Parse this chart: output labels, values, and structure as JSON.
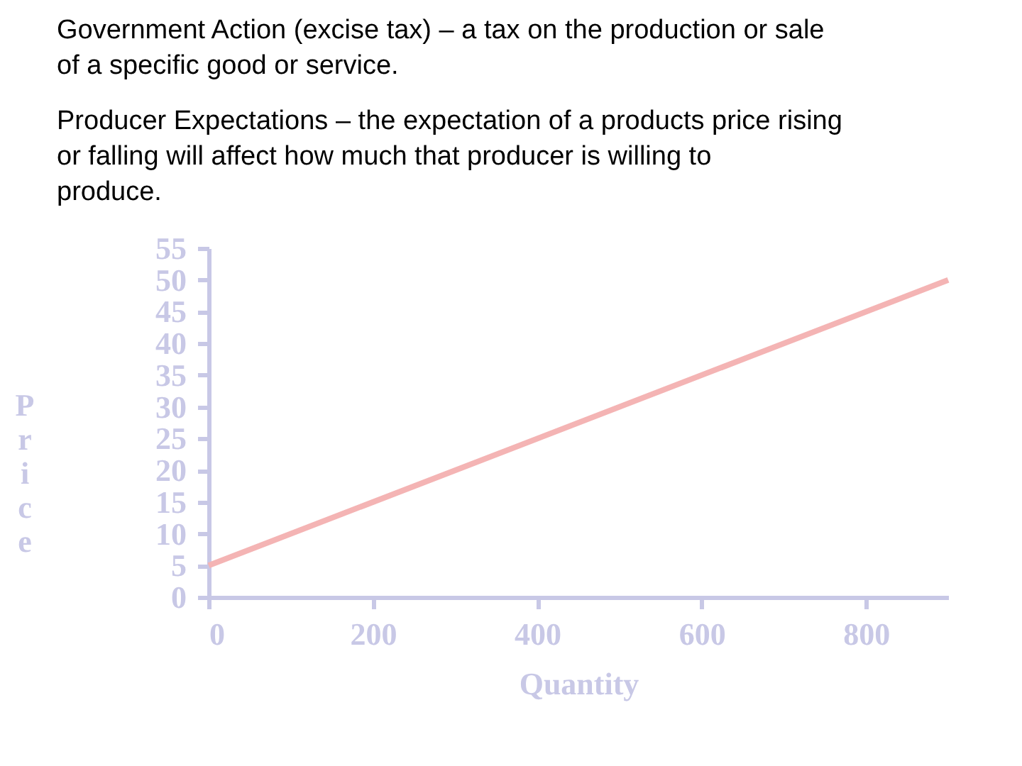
{
  "chart_data": {
    "type": "line",
    "xlabel": "Quantity",
    "ylabel": "Price",
    "x": [
      0,
      900
    ],
    "series": [
      {
        "color": "#f4b4b4",
        "values": [
          5,
          50
        ]
      }
    ],
    "xlim": [
      0,
      900
    ],
    "xticks": [
      0,
      200,
      400,
      600,
      800
    ],
    "ylim": [
      0,
      55
    ],
    "yticks": [
      0,
      5,
      10,
      15,
      20,
      25,
      30,
      35,
      40,
      45,
      50,
      55
    ],
    "grid": false,
    "legend": false,
    "marker": "none",
    "line_style": "solid",
    "annotations": [
      "Government Action (excise tax) – a tax on the production or sale of a specific good or service.",
      "Producer Expectations – the expectation of a products price rising or falling will affect how much that producer is willing to produce."
    ]
  }
}
